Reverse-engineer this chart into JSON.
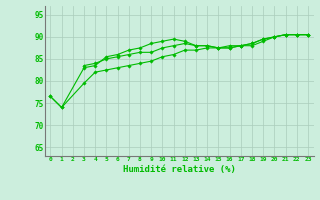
{
  "title": "",
  "xlabel": "Humidité relative (%)",
  "ylabel": "",
  "bg_color": "#cceedd",
  "grid_color": "#aaccbb",
  "line_color": "#00bb00",
  "xlim": [
    -0.5,
    23.5
  ],
  "ylim": [
    63,
    97
  ],
  "yticks": [
    65,
    70,
    75,
    80,
    85,
    90,
    95
  ],
  "xticks": [
    0,
    1,
    2,
    3,
    4,
    5,
    6,
    7,
    8,
    9,
    10,
    11,
    12,
    13,
    14,
    15,
    16,
    17,
    18,
    19,
    20,
    21,
    22,
    23
  ],
  "series": [
    [
      76.5,
      74.0,
      null,
      83.0,
      83.5,
      85.5,
      86.0,
      87.0,
      87.5,
      88.5,
      89.0,
      89.5,
      89.0,
      88.0,
      88.0,
      87.5,
      88.0,
      88.0,
      88.5,
      89.5,
      90.0,
      90.5,
      90.5,
      90.5
    ],
    [
      null,
      null,
      null,
      83.5,
      84.0,
      85.0,
      85.5,
      86.0,
      86.5,
      86.5,
      87.5,
      88.0,
      88.5,
      88.0,
      88.0,
      87.5,
      87.5,
      88.0,
      88.5,
      89.5,
      90.0,
      90.5,
      90.5,
      90.5
    ],
    [
      76.5,
      74.0,
      null,
      79.5,
      82.0,
      82.5,
      83.0,
      83.5,
      84.0,
      84.5,
      85.5,
      86.0,
      87.0,
      87.0,
      87.5,
      87.5,
      87.5,
      88.0,
      88.0,
      89.0,
      90.0,
      90.5,
      90.5,
      90.5
    ]
  ]
}
